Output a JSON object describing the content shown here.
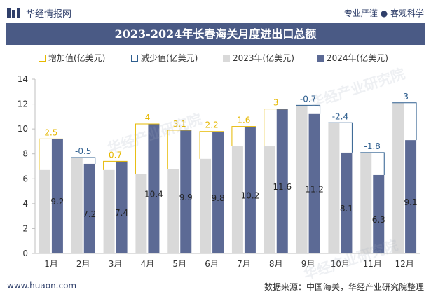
{
  "header": {
    "brand": "华经情报网",
    "right_text": "专业严谨 ● 客观科学"
  },
  "title": "2023-2024年长春海关月度进出口总额",
  "legend": {
    "increase": "增加值(亿美元)",
    "decrease": "减少值(亿美元)",
    "y2023": "2023年(亿美元)",
    "y2024": "2024年(亿美元)"
  },
  "footer": {
    "website": "www.huaon.com",
    "source": "数据来源：中国海关，华经产业研究院整理"
  },
  "watermark": "华经产业研究院",
  "colors": {
    "bar_2023": "#d9d9d9",
    "bar_2024": "#5c6a95",
    "increase": "#e6b800",
    "decrease": "#2f5f8f",
    "title_bg": "#4a5a85"
  },
  "chart_data": {
    "type": "bar",
    "categories": [
      "1月",
      "2月",
      "3月",
      "4月",
      "5月",
      "6月",
      "7月",
      "8月",
      "9月",
      "10月",
      "11月",
      "12月"
    ],
    "series": [
      {
        "name": "2023年(亿美元)",
        "values": [
          6.7,
          7.7,
          6.7,
          6.4,
          6.8,
          7.6,
          8.6,
          8.6,
          11.9,
          10.5,
          8.1,
          12.1
        ]
      },
      {
        "name": "2024年(亿美元)",
        "values": [
          9.2,
          7.2,
          7.4,
          10.4,
          9.9,
          9.8,
          10.2,
          11.6,
          11.2,
          8.1,
          6.3,
          9.1
        ]
      }
    ],
    "change": [
      2.5,
      -0.5,
      0.7,
      4,
      3.1,
      2.2,
      1.6,
      3,
      -0.7,
      -2.4,
      -1.8,
      -3
    ],
    "change_labels": [
      "2.5",
      "-0.5",
      "0.7",
      "4",
      "3.1",
      "2.2",
      "1.6",
      "3",
      "-0.7",
      "-2.4",
      "-1.8",
      "-3"
    ],
    "value_labels_2024": [
      "9.2",
      "7.2",
      "7.4",
      "10.4",
      "9.9",
      "9.8",
      "10.2",
      "11.6",
      "11.2",
      "8.1",
      "6.3",
      "9.1"
    ],
    "ylim": [
      0,
      14
    ],
    "yticks": [
      0,
      2,
      4,
      6,
      8,
      10,
      12,
      14
    ],
    "legend_position": "top",
    "grid": false
  }
}
